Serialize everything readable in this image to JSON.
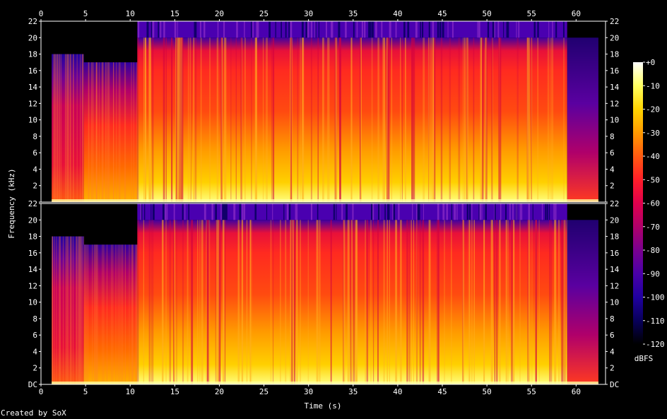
{
  "chart_data": {
    "type": "heatmap",
    "subtype": "spectrogram",
    "xlabel": "Time (s)",
    "ylabel": "Frequency (kHz)",
    "xlim": [
      0,
      63.3
    ],
    "x_ticks": [
      "0",
      "5",
      "10",
      "15",
      "20",
      "25",
      "30",
      "35",
      "40",
      "45",
      "50",
      "55",
      "60"
    ],
    "ylim_khz": [
      0,
      22
    ],
    "y_ticks": [
      "DC",
      "2",
      "4",
      "6",
      "8",
      "10",
      "12",
      "14",
      "16",
      "18",
      "20",
      "22"
    ],
    "channels": 2,
    "colorbar": {
      "label": "dBFS",
      "range": [
        -120,
        0
      ],
      "ticks": [
        "+0",
        "-10",
        "-20",
        "-30",
        "-40",
        "-50",
        "-60",
        "-70",
        "-80",
        "-90",
        "-100",
        "-110",
        "-120"
      ],
      "colors": [
        "#ffffff",
        "#ffff60",
        "#ffd400",
        "#ff9a00",
        "#ff5a10",
        "#ff1e28",
        "#e0004c",
        "#b0006a",
        "#7a0090",
        "#4a00a8",
        "#2000a0",
        "#08005a",
        "#000000"
      ]
    },
    "segments": [
      {
        "start_s": 0,
        "end_s": 1.2,
        "level": "silence"
      },
      {
        "start_s": 1.2,
        "end_s": 4.8,
        "level": "quiet",
        "cutoff_khz": 18
      },
      {
        "start_s": 4.8,
        "end_s": 10.8,
        "level": "moderate",
        "cutoff_khz": 17
      },
      {
        "start_s": 10.8,
        "end_s": 59.0,
        "level": "loud",
        "cutoff_khz": 20
      },
      {
        "start_s": 59.0,
        "end_s": 62.5,
        "level": "fade-out",
        "cutoff_khz": 20
      }
    ],
    "grid": false,
    "legend": "colorbar right"
  },
  "credit": "Created by SoX"
}
